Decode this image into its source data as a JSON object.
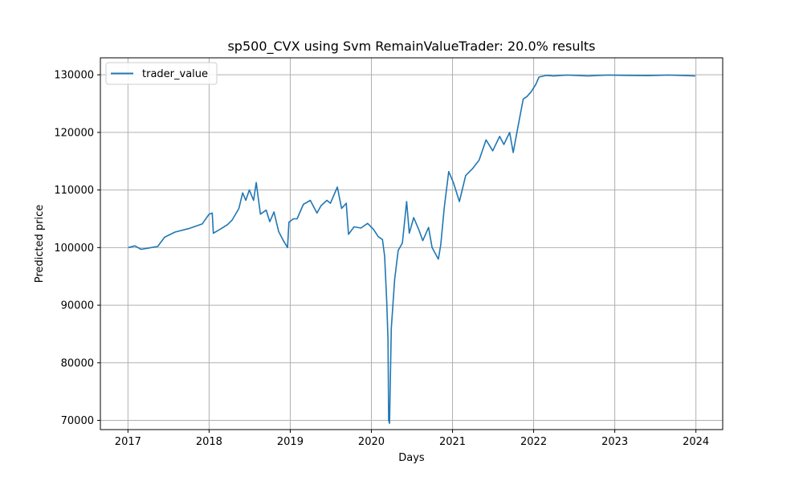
{
  "chart_data": {
    "type": "line",
    "title": "sp500_CVX using Svm RemainValueTrader: 20.0% results",
    "xlabel": "Days",
    "ylabel": "Predicted price",
    "x_ticks": [
      2017,
      2018,
      2019,
      2020,
      2021,
      2022,
      2023,
      2024
    ],
    "y_ticks": [
      70000,
      80000,
      90000,
      100000,
      110000,
      120000,
      130000
    ],
    "xlim": [
      2016.66,
      2024.33
    ],
    "ylim": [
      68400,
      132950
    ],
    "grid": true,
    "legend_position": "upper left",
    "line_color": "#1f77b4",
    "series": [
      {
        "name": "trader_value",
        "x": [
          "2017-01-03",
          "2017-02-01",
          "2017-03-01",
          "2017-04-01",
          "2017-05-15",
          "2017-06-15",
          "2017-08-01",
          "2017-10-01",
          "2017-12-01",
          "2018-01-01",
          "2018-01-15",
          "2018-01-20",
          "2018-02-20",
          "2018-03-25",
          "2018-04-15",
          "2018-05-15",
          "2018-06-01",
          "2018-06-15",
          "2018-07-01",
          "2018-07-20",
          "2018-08-01",
          "2018-08-20",
          "2018-09-15",
          "2018-10-01",
          "2018-10-20",
          "2018-11-10",
          "2018-12-01",
          "2018-12-20",
          "2018-12-26",
          "2019-01-15",
          "2019-02-01",
          "2019-03-01",
          "2019-04-01",
          "2019-05-01",
          "2019-05-20",
          "2019-06-15",
          "2019-07-01",
          "2019-08-01",
          "2019-08-20",
          "2019-09-10",
          "2019-09-20",
          "2019-10-15",
          "2019-11-15",
          "2019-12-15",
          "2020-01-10",
          "2020-02-01",
          "2020-02-20",
          "2020-03-01",
          "2020-03-10",
          "2020-03-16",
          "2020-03-19",
          "2020-03-23",
          "2020-03-31",
          "2020-04-15",
          "2020-05-01",
          "2020-05-20",
          "2020-06-08",
          "2020-06-20",
          "2020-07-10",
          "2020-08-01",
          "2020-08-20",
          "2020-09-15",
          "2020-10-01",
          "2020-10-29",
          "2020-11-09",
          "2020-11-25",
          "2020-12-15",
          "2021-01-05",
          "2021-02-01",
          "2021-03-01",
          "2021-04-01",
          "2021-05-01",
          "2021-06-01",
          "2021-07-01",
          "2021-08-01",
          "2021-08-20",
          "2021-09-15",
          "2021-10-01",
          "2021-10-20",
          "2021-11-15",
          "2021-12-01",
          "2021-12-20",
          "2022-01-10",
          "2022-01-25",
          "2022-02-15",
          "2022-03-01",
          "2022-04-01",
          "2022-06-01",
          "2022-09-01",
          "2022-12-01",
          "2023-03-01",
          "2023-06-01",
          "2023-09-01",
          "2023-12-29"
        ],
        "values": [
          100000,
          100300,
          99700,
          99900,
          100200,
          101800,
          102700,
          103300,
          104100,
          105800,
          106000,
          102500,
          103200,
          104000,
          104800,
          106800,
          109500,
          108200,
          110000,
          108200,
          111300,
          105800,
          106500,
          104500,
          106200,
          102800,
          101200,
          100000,
          104400,
          105000,
          105000,
          107500,
          108200,
          106000,
          107300,
          108200,
          107700,
          110500,
          106800,
          107700,
          102300,
          103600,
          103400,
          104200,
          103200,
          101900,
          101400,
          98500,
          91000,
          84000,
          70000,
          69500,
          86000,
          94500,
          99500,
          100800,
          108000,
          102500,
          105200,
          103200,
          101200,
          103500,
          100000,
          98000,
          100500,
          107000,
          113200,
          111300,
          108000,
          112500,
          113700,
          115200,
          118700,
          116800,
          119300,
          117900,
          120000,
          116500,
          120500,
          125800,
          126200,
          127000,
          128300,
          129600,
          129800,
          129900,
          129800,
          129950,
          129800,
          129950,
          129900,
          129850,
          129950,
          129800
        ]
      }
    ]
  }
}
